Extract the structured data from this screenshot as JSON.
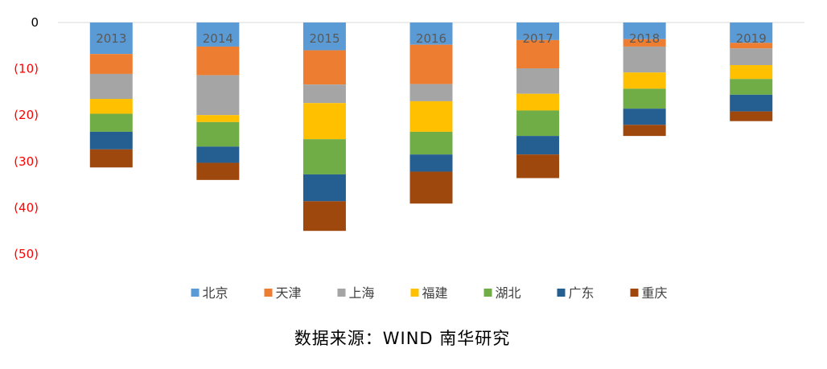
{
  "chart_data": {
    "type": "bar",
    "stacked": true,
    "categories": [
      "2013",
      "2014",
      "2015",
      "2016",
      "2017",
      "2018",
      "2019"
    ],
    "series": [
      {
        "name": "北京",
        "color": "#5B9BD5",
        "values": [
          -6.8,
          -5.2,
          -6.0,
          -4.8,
          -3.8,
          -3.6,
          -4.4
        ]
      },
      {
        "name": "天津",
        "color": "#ED7D31",
        "values": [
          -4.3,
          -6.2,
          -7.4,
          -8.5,
          -6.1,
          -1.6,
          -1.2
        ]
      },
      {
        "name": "上海",
        "color": "#A5A5A5",
        "values": [
          -5.4,
          -8.6,
          -4.0,
          -3.7,
          -5.5,
          -5.6,
          -3.6
        ]
      },
      {
        "name": "福建",
        "color": "#FFC000",
        "values": [
          -3.2,
          -1.5,
          -7.8,
          -6.6,
          -3.6,
          -3.5,
          -3.0
        ]
      },
      {
        "name": "湖北",
        "color": "#70AD47",
        "values": [
          -3.9,
          -5.3,
          -7.6,
          -4.9,
          -5.5,
          -4.3,
          -3.4
        ]
      },
      {
        "name": "广东",
        "color": "#255E91",
        "values": [
          -3.8,
          -3.5,
          -5.8,
          -3.7,
          -4.0,
          -3.5,
          -3.6
        ]
      },
      {
        "name": "重庆",
        "color": "#9E480E",
        "values": [
          -3.9,
          -3.7,
          -6.4,
          -6.9,
          -5.1,
          -2.4,
          -2.1
        ]
      }
    ],
    "ylim": [
      -50,
      0
    ],
    "yticks": [
      0,
      -10,
      -20,
      -30,
      -40,
      -50
    ],
    "ytick_labels": [
      "0",
      "(10)",
      "(20)",
      "(30)",
      "(40)",
      "(50)"
    ],
    "ytick_colors": {
      "zero": "#000000",
      "negative": "#FF0000"
    },
    "legend_position": "bottom",
    "grid": false
  },
  "source_text": "数据来源：WIND 南华研究"
}
